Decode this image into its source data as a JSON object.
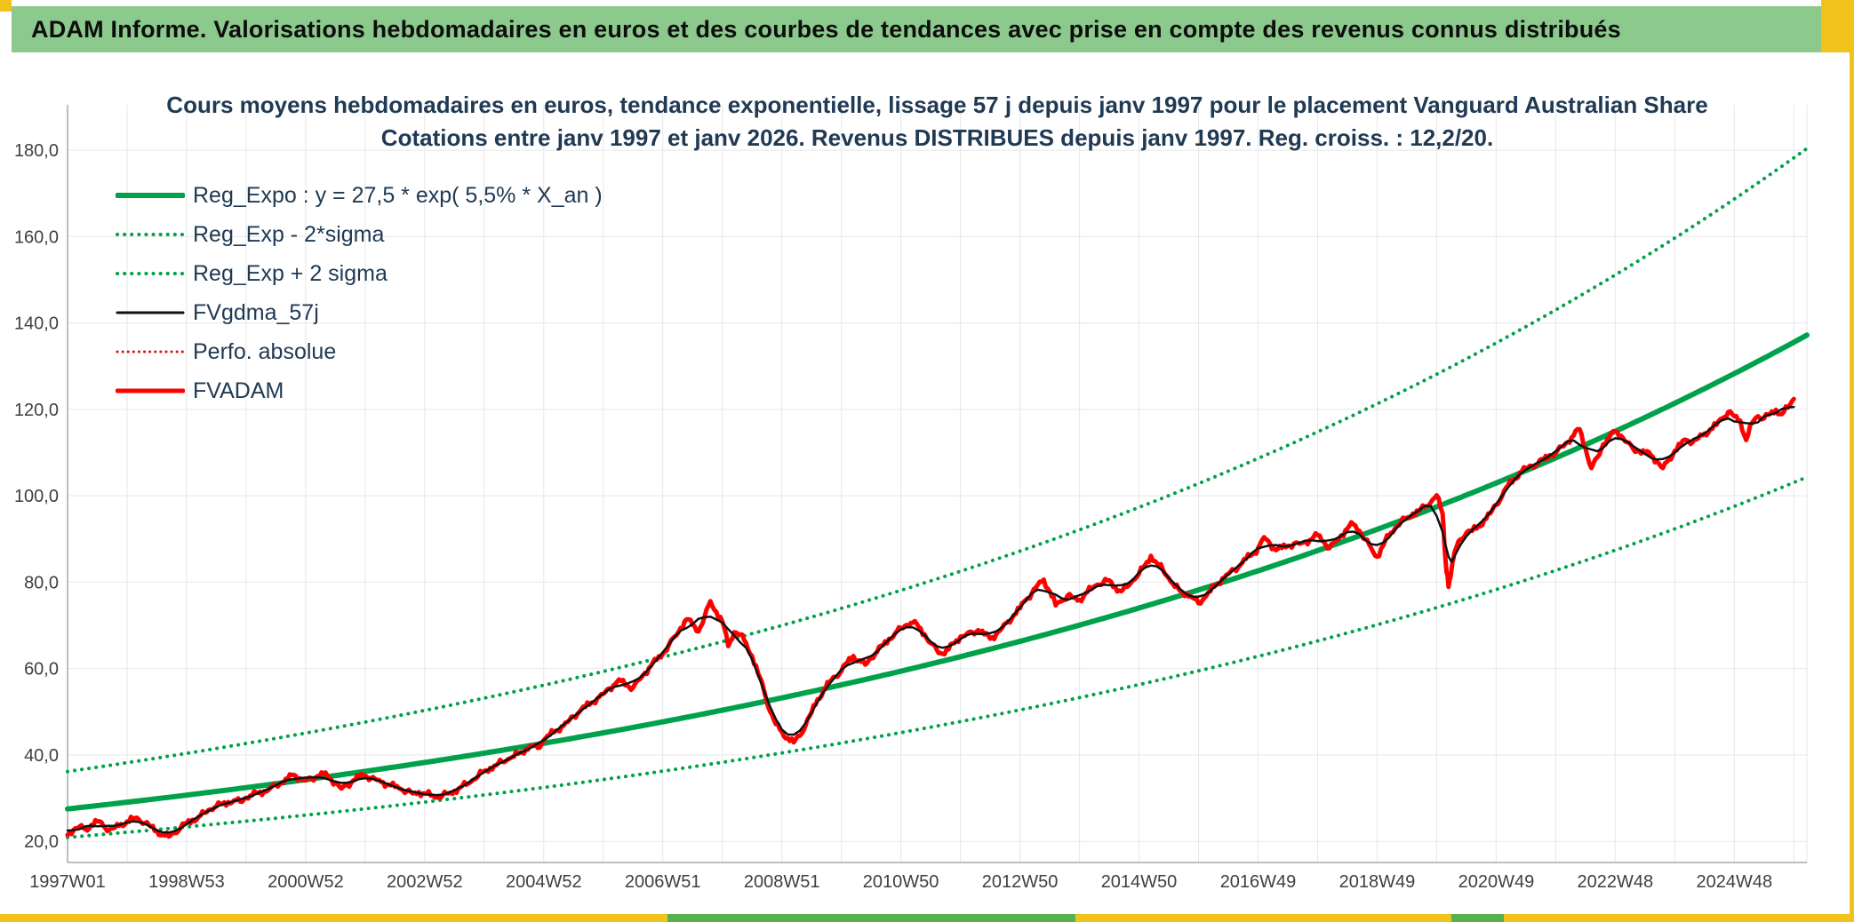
{
  "window": {
    "header_title": "ADAM Informe. Valorisations hebdomadaires en euros et des courbes de tendances avec prise en compte des revenus connus distribués",
    "colors": {
      "header_bg": "#8CC98C",
      "accent_gold": "#F2C21C",
      "accent_green": "#58B14C"
    }
  },
  "chart_data": {
    "type": "line",
    "title": "Cours moyens hebdomadaires en euros, tendance exponentielle, lissage 57 j depuis janv 1997 pour le placement Vanguard Australian Share",
    "subtitle": "Cotations entre janv 1997 et janv 2026. Revenus DISTRIBUES depuis janv 1997. Reg. croiss. : 12,2/20.",
    "title_color": "#203A54",
    "xlabel": "",
    "ylabel": "",
    "legend_position": "top-left",
    "x_axis": {
      "min": 1997,
      "max": 2026.22,
      "minor_step": 1,
      "tick_years": [
        1997,
        1999,
        2001,
        2003,
        2005,
        2007,
        2009,
        2011,
        2013,
        2015,
        2017,
        2019,
        2021,
        2023,
        2025
      ],
      "tick_labels": [
        "1997W01",
        "1998W53",
        "2000W52",
        "2002W52",
        "2004W52",
        "2006W51",
        "2008W51",
        "2010W50",
        "2012W50",
        "2014W50",
        "2016W49",
        "2018W49",
        "2020W49",
        "2022W48",
        "2024W48"
      ]
    },
    "y_axis": {
      "min": 15.1,
      "max": 190.5,
      "ticks": [
        20,
        40,
        60,
        80,
        100,
        120,
        140,
        160,
        180
      ],
      "tick_labels": [
        "20,0",
        "40,0",
        "60,0",
        "80,0",
        "100,0",
        "120,0",
        "140,0",
        "160,0",
        "180,0"
      ],
      "label_color": "#3F3F3F",
      "grid_color": "#E7E7E7",
      "axis_color": "#A8A8A8"
    },
    "regression": {
      "formula": "y = 27,5 * exp( 5,5% * X_an )",
      "base": 27.5,
      "rate": 0.055,
      "sigma_band_factor": 1.315,
      "x_start": 1997,
      "x_end": 2026.22
    },
    "series": [
      {
        "id": "reg_expo",
        "label": "Reg_Expo : y = 27,5 * exp( 5,5% *  X_an )",
        "color": "#00A14B",
        "style": "solid",
        "width": 6,
        "source": "reg"
      },
      {
        "id": "reg_minus2sigma",
        "label": "Reg_Exp - 2*sigma",
        "color": "#00A14B",
        "style": "dotted",
        "width": 4,
        "source": "reg_lower"
      },
      {
        "id": "reg_plus2sigma",
        "label": "Reg_Exp + 2 sigma",
        "color": "#00A14B",
        "style": "dotted",
        "width": 4,
        "source": "reg_upper"
      },
      {
        "id": "fvgdma_57j",
        "label": "FVgdma_57j",
        "color": "#111111",
        "style": "solid",
        "width": 2.5,
        "source": "smooth"
      },
      {
        "id": "perfo_absolue",
        "label": "Perfo. absolue",
        "color": "#E01010",
        "style": "dotted",
        "width": 2.5,
        "source": "points"
      },
      {
        "id": "fvadam",
        "label": "FVADAM",
        "color": "#FF0000",
        "style": "solid",
        "width": 5,
        "source": "points"
      }
    ],
    "points_fvadam": [
      [
        1997.0,
        21.5
      ],
      [
        1997.1,
        22.6
      ],
      [
        1997.2,
        23.4
      ],
      [
        1997.3,
        22.8
      ],
      [
        1997.4,
        23.8
      ],
      [
        1997.5,
        24.6
      ],
      [
        1997.6,
        23.6
      ],
      [
        1997.7,
        22.6
      ],
      [
        1997.8,
        23.2
      ],
      [
        1997.9,
        24.0
      ],
      [
        1998.0,
        24.6
      ],
      [
        1998.1,
        25.2
      ],
      [
        1998.2,
        25.0
      ],
      [
        1998.3,
        24.2
      ],
      [
        1998.4,
        23.4
      ],
      [
        1998.5,
        22.4
      ],
      [
        1998.6,
        21.6
      ],
      [
        1998.7,
        21.1
      ],
      [
        1998.8,
        21.9
      ],
      [
        1998.9,
        23.1
      ],
      [
        1999.0,
        24.2
      ],
      [
        1999.1,
        25.0
      ],
      [
        1999.2,
        25.6
      ],
      [
        1999.3,
        26.6
      ],
      [
        1999.4,
        27.4
      ],
      [
        1999.5,
        28.1
      ],
      [
        1999.6,
        28.6
      ],
      [
        1999.7,
        29.1
      ],
      [
        1999.8,
        29.5
      ],
      [
        1999.9,
        29.2
      ],
      [
        2000.0,
        30.1
      ],
      [
        2000.1,
        30.6
      ],
      [
        2000.2,
        31.2
      ],
      [
        2000.3,
        31.6
      ],
      [
        2000.4,
        32.2
      ],
      [
        2000.5,
        33.0
      ],
      [
        2000.6,
        33.6
      ],
      [
        2000.7,
        34.4
      ],
      [
        2000.8,
        35.4
      ],
      [
        2000.9,
        34.6
      ],
      [
        2001.0,
        34.1
      ],
      [
        2001.1,
        34.6
      ],
      [
        2001.2,
        35.1
      ],
      [
        2001.3,
        35.6
      ],
      [
        2001.4,
        34.6
      ],
      [
        2001.5,
        33.6
      ],
      [
        2001.6,
        32.2
      ],
      [
        2001.7,
        33.1
      ],
      [
        2001.8,
        34.1
      ],
      [
        2001.9,
        34.9
      ],
      [
        2002.0,
        35.2
      ],
      [
        2002.1,
        34.7
      ],
      [
        2002.2,
        34.2
      ],
      [
        2002.3,
        33.7
      ],
      [
        2002.4,
        33.1
      ],
      [
        2002.5,
        32.6
      ],
      [
        2002.6,
        32.1
      ],
      [
        2002.7,
        31.6
      ],
      [
        2002.8,
        31.1
      ],
      [
        2002.9,
        31.4
      ],
      [
        2003.0,
        31.1
      ],
      [
        2003.1,
        30.6
      ],
      [
        2003.2,
        30.1
      ],
      [
        2003.3,
        30.6
      ],
      [
        2003.4,
        31.1
      ],
      [
        2003.5,
        31.7
      ],
      [
        2003.6,
        32.5
      ],
      [
        2003.7,
        33.1
      ],
      [
        2003.8,
        34.1
      ],
      [
        2003.9,
        35.1
      ],
      [
        2004.0,
        36.3
      ],
      [
        2004.1,
        37.0
      ],
      [
        2004.2,
        37.6
      ],
      [
        2004.3,
        38.4
      ],
      [
        2004.4,
        39.0
      ],
      [
        2004.5,
        39.6
      ],
      [
        2004.6,
        40.5
      ],
      [
        2004.7,
        41.4
      ],
      [
        2004.8,
        42.1
      ],
      [
        2004.9,
        41.6
      ],
      [
        2005.0,
        43.4
      ],
      [
        2005.1,
        44.6
      ],
      [
        2005.2,
        45.6
      ],
      [
        2005.3,
        46.6
      ],
      [
        2005.4,
        47.6
      ],
      [
        2005.5,
        48.9
      ],
      [
        2005.6,
        50.0
      ],
      [
        2005.7,
        51.1
      ],
      [
        2005.8,
        52.1
      ],
      [
        2005.9,
        53.1
      ],
      [
        2006.0,
        54.1
      ],
      [
        2006.1,
        55.4
      ],
      [
        2006.2,
        56.4
      ],
      [
        2006.3,
        57.1
      ],
      [
        2006.4,
        56.1
      ],
      [
        2006.5,
        55.6
      ],
      [
        2006.6,
        57.4
      ],
      [
        2006.7,
        59.0
      ],
      [
        2006.8,
        60.6
      ],
      [
        2006.9,
        62.0
      ],
      [
        2007.0,
        63.4
      ],
      [
        2007.1,
        65.4
      ],
      [
        2007.2,
        67.4
      ],
      [
        2007.3,
        69.4
      ],
      [
        2007.4,
        71.4
      ],
      [
        2007.5,
        70.1
      ],
      [
        2007.6,
        68.6
      ],
      [
        2007.7,
        71.9
      ],
      [
        2007.8,
        75.6
      ],
      [
        2007.9,
        73.1
      ],
      [
        2008.0,
        70.9
      ],
      [
        2008.1,
        65.2
      ],
      [
        2008.2,
        68.4
      ],
      [
        2008.3,
        67.9
      ],
      [
        2008.4,
        65.9
      ],
      [
        2008.5,
        62.9
      ],
      [
        2008.6,
        58.9
      ],
      [
        2008.7,
        54.9
      ],
      [
        2008.8,
        50.1
      ],
      [
        2008.9,
        47.1
      ],
      [
        2009.0,
        45.4
      ],
      [
        2009.1,
        43.9
      ],
      [
        2009.2,
        42.9
      ],
      [
        2009.3,
        44.4
      ],
      [
        2009.4,
        46.9
      ],
      [
        2009.5,
        49.9
      ],
      [
        2009.6,
        52.9
      ],
      [
        2009.7,
        54.9
      ],
      [
        2009.8,
        56.9
      ],
      [
        2009.9,
        58.1
      ],
      [
        2010.0,
        59.4
      ],
      [
        2010.1,
        61.4
      ],
      [
        2010.2,
        62.9
      ],
      [
        2010.3,
        61.9
      ],
      [
        2010.4,
        60.9
      ],
      [
        2010.5,
        62.4
      ],
      [
        2010.6,
        63.9
      ],
      [
        2010.7,
        65.4
      ],
      [
        2010.8,
        66.9
      ],
      [
        2010.9,
        68.1
      ],
      [
        2011.0,
        69.4
      ],
      [
        2011.1,
        70.1
      ],
      [
        2011.2,
        70.6
      ],
      [
        2011.3,
        69.6
      ],
      [
        2011.4,
        67.9
      ],
      [
        2011.5,
        65.9
      ],
      [
        2011.6,
        64.4
      ],
      [
        2011.7,
        63.4
      ],
      [
        2011.8,
        64.4
      ],
      [
        2011.9,
        65.9
      ],
      [
        2012.0,
        67.4
      ],
      [
        2012.1,
        67.9
      ],
      [
        2012.2,
        68.4
      ],
      [
        2012.3,
        68.9
      ],
      [
        2012.4,
        67.9
      ],
      [
        2012.5,
        66.9
      ],
      [
        2012.6,
        67.9
      ],
      [
        2012.7,
        69.4
      ],
      [
        2012.8,
        70.9
      ],
      [
        2012.9,
        72.4
      ],
      [
        2013.0,
        73.9
      ],
      [
        2013.1,
        75.9
      ],
      [
        2013.2,
        77.4
      ],
      [
        2013.3,
        79.4
      ],
      [
        2013.4,
        80.6
      ],
      [
        2013.5,
        77.9
      ],
      [
        2013.6,
        74.6
      ],
      [
        2013.7,
        75.6
      ],
      [
        2013.8,
        76.9
      ],
      [
        2013.9,
        76.4
      ],
      [
        2014.0,
        75.9
      ],
      [
        2014.1,
        77.4
      ],
      [
        2014.2,
        78.4
      ],
      [
        2014.3,
        79.4
      ],
      [
        2014.4,
        79.9
      ],
      [
        2014.5,
        80.4
      ],
      [
        2014.6,
        78.9
      ],
      [
        2014.7,
        77.9
      ],
      [
        2014.8,
        78.9
      ],
      [
        2014.9,
        80.4
      ],
      [
        2015.0,
        81.9
      ],
      [
        2015.1,
        83.9
      ],
      [
        2015.2,
        86.1
      ],
      [
        2015.3,
        84.4
      ],
      [
        2015.4,
        82.9
      ],
      [
        2015.5,
        80.9
      ],
      [
        2015.6,
        78.9
      ],
      [
        2015.7,
        77.9
      ],
      [
        2015.8,
        77.4
      ],
      [
        2015.9,
        76.4
      ],
      [
        2016.0,
        75.1
      ],
      [
        2016.1,
        76.4
      ],
      [
        2016.2,
        77.9
      ],
      [
        2016.3,
        79.4
      ],
      [
        2016.4,
        80.9
      ],
      [
        2016.5,
        81.9
      ],
      [
        2016.6,
        82.9
      ],
      [
        2016.7,
        83.9
      ],
      [
        2016.8,
        85.4
      ],
      [
        2016.9,
        86.4
      ],
      [
        2017.0,
        87.9
      ],
      [
        2017.1,
        90.4
      ],
      [
        2017.2,
        88.9
      ],
      [
        2017.3,
        87.4
      ],
      [
        2017.4,
        87.9
      ],
      [
        2017.5,
        88.4
      ],
      [
        2017.6,
        88.9
      ],
      [
        2017.7,
        88.9
      ],
      [
        2017.8,
        89.4
      ],
      [
        2017.9,
        89.9
      ],
      [
        2018.0,
        90.9
      ],
      [
        2018.1,
        89.4
      ],
      [
        2018.2,
        87.9
      ],
      [
        2018.3,
        89.4
      ],
      [
        2018.4,
        90.9
      ],
      [
        2018.5,
        92.4
      ],
      [
        2018.6,
        93.4
      ],
      [
        2018.7,
        91.9
      ],
      [
        2018.8,
        89.9
      ],
      [
        2018.9,
        87.9
      ],
      [
        2019.0,
        85.9
      ],
      [
        2019.1,
        88.4
      ],
      [
        2019.2,
        90.9
      ],
      [
        2019.3,
        92.4
      ],
      [
        2019.4,
        93.9
      ],
      [
        2019.5,
        94.9
      ],
      [
        2019.6,
        95.9
      ],
      [
        2019.7,
        96.4
      ],
      [
        2019.8,
        97.4
      ],
      [
        2019.9,
        98.4
      ],
      [
        2020.0,
        100.1
      ],
      [
        2020.1,
        95.9
      ],
      [
        2020.15,
        84.9
      ],
      [
        2020.2,
        78.9
      ],
      [
        2020.25,
        82.9
      ],
      [
        2020.3,
        86.9
      ],
      [
        2020.4,
        89.9
      ],
      [
        2020.5,
        91.4
      ],
      [
        2020.6,
        91.9
      ],
      [
        2020.7,
        92.9
      ],
      [
        2020.8,
        94.4
      ],
      [
        2020.9,
        95.9
      ],
      [
        2021.0,
        97.9
      ],
      [
        2021.1,
        99.9
      ],
      [
        2021.2,
        102.4
      ],
      [
        2021.3,
        103.9
      ],
      [
        2021.4,
        105.4
      ],
      [
        2021.5,
        106.4
      ],
      [
        2021.6,
        106.9
      ],
      [
        2021.7,
        107.4
      ],
      [
        2021.8,
        108.4
      ],
      [
        2021.9,
        109.4
      ],
      [
        2022.0,
        109.9
      ],
      [
        2022.1,
        111.4
      ],
      [
        2022.2,
        112.4
      ],
      [
        2022.3,
        113.9
      ],
      [
        2022.4,
        115.4
      ],
      [
        2022.5,
        110.9
      ],
      [
        2022.6,
        106.4
      ],
      [
        2022.7,
        108.9
      ],
      [
        2022.8,
        111.9
      ],
      [
        2022.9,
        113.4
      ],
      [
        2023.0,
        114.9
      ],
      [
        2023.1,
        113.9
      ],
      [
        2023.2,
        112.4
      ],
      [
        2023.3,
        110.9
      ],
      [
        2023.4,
        110.4
      ],
      [
        2023.5,
        109.9
      ],
      [
        2023.6,
        109.4
      ],
      [
        2023.7,
        107.9
      ],
      [
        2023.8,
        106.4
      ],
      [
        2023.9,
        108.4
      ],
      [
        2024.0,
        110.4
      ],
      [
        2024.1,
        111.9
      ],
      [
        2024.2,
        112.9
      ],
      [
        2024.3,
        112.4
      ],
      [
        2024.4,
        113.4
      ],
      [
        2024.5,
        114.4
      ],
      [
        2024.6,
        115.4
      ],
      [
        2024.7,
        116.4
      ],
      [
        2024.8,
        117.9
      ],
      [
        2024.9,
        119.4
      ],
      [
        2025.0,
        118.4
      ],
      [
        2025.1,
        117.4
      ],
      [
        2025.2,
        112.9
      ],
      [
        2025.3,
        116.9
      ],
      [
        2025.4,
        118.4
      ],
      [
        2025.5,
        117.9
      ],
      [
        2025.6,
        118.9
      ],
      [
        2025.7,
        119.9
      ],
      [
        2025.8,
        118.9
      ],
      [
        2025.9,
        120.4
      ],
      [
        2026.0,
        122.4
      ]
    ]
  }
}
